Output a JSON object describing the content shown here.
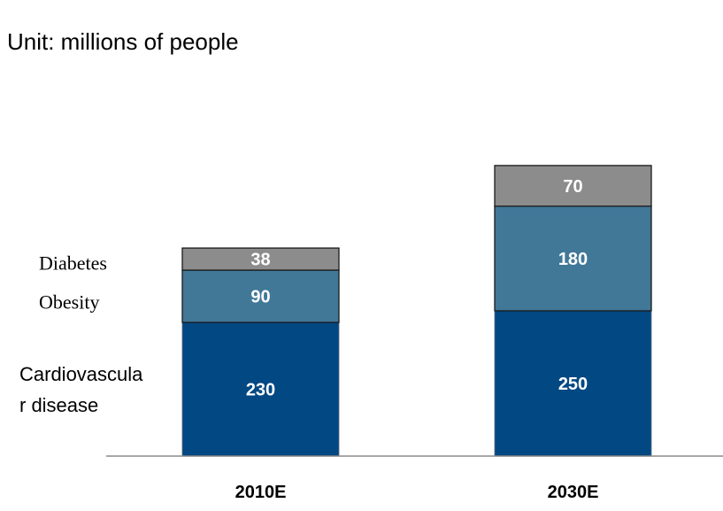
{
  "chart_data": {
    "type": "bar",
    "stacked": true,
    "unit_label": "Unit: millions of people",
    "categories": [
      "2010E",
      "2030E"
    ],
    "series": [
      {
        "name": "Cardiovascular disease",
        "label_lines": [
          "Cardiovascula",
          "r disease"
        ],
        "color": "#024883",
        "values": [
          230,
          250
        ]
      },
      {
        "name": "Obesity",
        "label_lines": [
          "Obesity"
        ],
        "color": "#417898",
        "values": [
          90,
          180
        ]
      },
      {
        "name": "Diabetes",
        "label_lines": [
          "Diabetes"
        ],
        "color": "#8c8c8c",
        "values": [
          38,
          70
        ]
      }
    ],
    "legend": "left, inline beside first bar",
    "grid": false
  }
}
